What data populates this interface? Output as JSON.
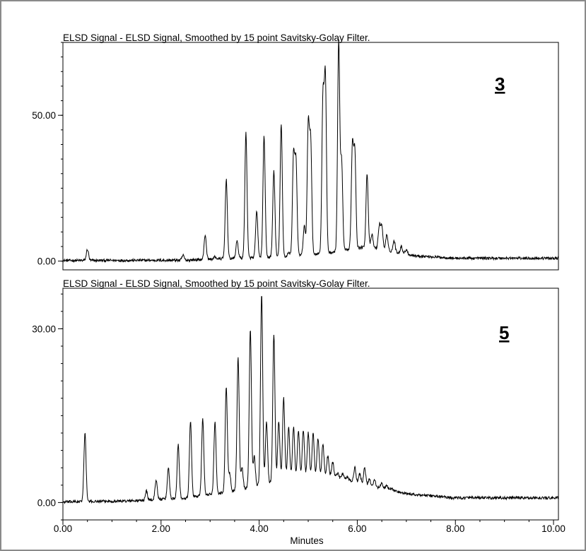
{
  "chart_data": [
    {
      "type": "line",
      "title": "ELSD Signal - ELSD Signal, Smoothed by 15 point Savitsky-Golay Filter.",
      "label": "3",
      "xlabel": "",
      "ylabel": "",
      "xlim": [
        0,
        10.1
      ],
      "ylim": [
        -3,
        75
      ],
      "yticks": [
        0,
        50
      ],
      "ytick_labels": [
        "0.00",
        "50.00"
      ],
      "series": [
        {
          "values": {
            "baseline": [
              [
                0,
                0.2
              ],
              [
                2.5,
                0.3
              ],
              [
                3.2,
                0.8
              ],
              [
                4.5,
                1.5
              ],
              [
                5.5,
                3
              ],
              [
                6.2,
                5
              ],
              [
                6.8,
                3
              ],
              [
                7.2,
                1.8
              ],
              [
                8,
                1
              ],
              [
                10.1,
                1
              ]
            ],
            "peaks": [
              [
                0.5,
                4
              ],
              [
                2.45,
                2
              ],
              [
                2.9,
                9
              ],
              [
                3.1,
                1.5
              ],
              [
                3.33,
                28
              ],
              [
                3.55,
                7
              ],
              [
                3.73,
                44
              ],
              [
                3.95,
                17
              ],
              [
                4.1,
                43
              ],
              [
                4.3,
                31
              ],
              [
                4.45,
                47
              ],
              [
                4.6,
                3
              ],
              [
                4.7,
                36
              ],
              [
                4.75,
                34
              ],
              [
                4.92,
                12
              ],
              [
                5.0,
                46
              ],
              [
                5.05,
                41
              ],
              [
                5.3,
                55
              ],
              [
                5.35,
                62
              ],
              [
                5.62,
                75
              ],
              [
                5.68,
                34
              ],
              [
                5.9,
                39
              ],
              [
                5.95,
                37
              ],
              [
                6.2,
                30
              ],
              [
                6.3,
                9
              ],
              [
                6.45,
                12
              ],
              [
                6.5,
                12
              ],
              [
                6.6,
                9
              ],
              [
                6.75,
                7
              ],
              [
                6.9,
                5
              ],
              [
                7.0,
                4
              ]
            ]
          }
        }
      ]
    },
    {
      "type": "line",
      "title": "ELSD Signal - ELSD Signal, Smoothed by 15 point Savitsky-Golay Filter.",
      "label": "5",
      "xlabel": "Minutes",
      "ylabel": "",
      "xlim": [
        0,
        10.1
      ],
      "ylim": [
        -3,
        37
      ],
      "yticks": [
        0,
        30
      ],
      "ytick_labels": [
        "0.00",
        "30.00"
      ],
      "xticks": [
        0,
        2,
        4,
        6,
        8,
        10
      ],
      "xtick_labels": [
        "0.00",
        "2.00",
        "4.00",
        "6.00",
        "8.00",
        "10.00"
      ],
      "series": [
        {
          "values": {
            "baseline": [
              [
                0,
                0.1
              ],
              [
                1.5,
                0.3
              ],
              [
                2.5,
                0.8
              ],
              [
                3.5,
                2
              ],
              [
                4.5,
                4
              ],
              [
                5.5,
                4.5
              ],
              [
                6.2,
                3
              ],
              [
                7.0,
                1.5
              ],
              [
                8,
                0.8
              ],
              [
                10.1,
                0.8
              ]
            ],
            "peaks": [
              [
                0.45,
                12
              ],
              [
                1.7,
                2
              ],
              [
                1.9,
                4
              ],
              [
                2.15,
                6
              ],
              [
                2.35,
                10
              ],
              [
                2.6,
                14
              ],
              [
                2.85,
                14.5
              ],
              [
                3.1,
                14
              ],
              [
                3.33,
                20
              ],
              [
                3.4,
                5
              ],
              [
                3.57,
                25
              ],
              [
                3.65,
                6
              ],
              [
                3.82,
                30
              ],
              [
                3.9,
                8
              ],
              [
                4.05,
                36
              ],
              [
                4.15,
                14
              ],
              [
                4.3,
                29
              ],
              [
                4.4,
                14
              ],
              [
                4.5,
                18
              ],
              [
                4.6,
                13
              ],
              [
                4.7,
                13
              ],
              [
                4.8,
                12.5
              ],
              [
                4.9,
                12.5
              ],
              [
                5.0,
                12
              ],
              [
                5.1,
                12
              ],
              [
                5.2,
                11
              ],
              [
                5.3,
                10
              ],
              [
                5.4,
                8
              ],
              [
                5.5,
                7
              ],
              [
                5.6,
                5
              ],
              [
                5.7,
                5
              ],
              [
                5.8,
                4.5
              ],
              [
                5.95,
                6
              ],
              [
                6.05,
                5
              ],
              [
                6.15,
                6
              ],
              [
                6.25,
                4
              ],
              [
                6.35,
                4
              ],
              [
                6.5,
                3.5
              ],
              [
                6.6,
                3
              ],
              [
                6.7,
                2.5
              ],
              [
                6.8,
                2
              ]
            ]
          }
        }
      ]
    }
  ]
}
